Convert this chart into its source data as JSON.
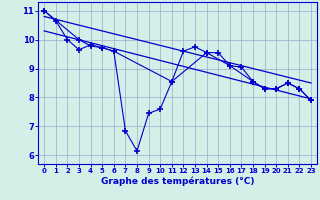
{
  "bg_color": "#d4eee8",
  "grid_color": "#a0a8cc",
  "line_color": "#0000cc",
  "xlabel": "Graphe des températures (°C)",
  "ylim": [
    5.7,
    11.3
  ],
  "xlim": [
    -0.5,
    23.5
  ],
  "yticks": [
    6,
    7,
    8,
    9,
    10,
    11
  ],
  "xticks": [
    0,
    1,
    2,
    3,
    4,
    5,
    6,
    7,
    8,
    9,
    10,
    11,
    12,
    13,
    14,
    15,
    16,
    17,
    18,
    19,
    20,
    21,
    22,
    23
  ],
  "series1_x": [
    0,
    1,
    2,
    3,
    4,
    5,
    6,
    7,
    8,
    9,
    10,
    11,
    12,
    13,
    14,
    15,
    16,
    17,
    18,
    19,
    20,
    21,
    22,
    23
  ],
  "series1_y": [
    11.0,
    10.65,
    10.0,
    9.65,
    9.82,
    9.72,
    9.6,
    6.85,
    6.15,
    7.45,
    7.6,
    8.55,
    9.6,
    9.75,
    9.55,
    9.55,
    9.1,
    9.05,
    8.55,
    8.3,
    8.3,
    8.5,
    8.3,
    7.9
  ],
  "series2_x": [
    0,
    3,
    4,
    5,
    6,
    11,
    14,
    16,
    18,
    19,
    20,
    21,
    22,
    23
  ],
  "series2_y": [
    11.0,
    10.0,
    9.78,
    9.72,
    9.6,
    8.55,
    9.55,
    9.1,
    8.55,
    8.3,
    8.3,
    8.5,
    8.3,
    7.9
  ],
  "series3_x": [
    0,
    23
  ],
  "series3_y": [
    10.8,
    8.5
  ],
  "series4_x": [
    0,
    23
  ],
  "series4_y": [
    10.3,
    7.95
  ]
}
